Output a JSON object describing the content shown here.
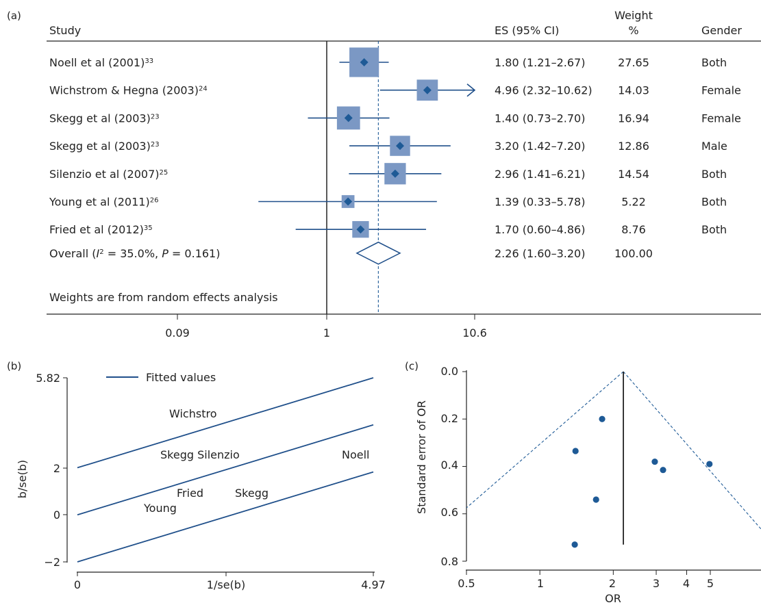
{
  "panel_a": {
    "label": "(a)",
    "headers": {
      "study": "Study",
      "es": "ES (95% CI)",
      "weight_line1": "Weight",
      "weight_line2": "%",
      "gender": "Gender"
    },
    "rows": [
      {
        "study": "Noell et al (2001)",
        "ref": "33",
        "es": "1.80 (1.21–2.67)",
        "weight": "27.65",
        "gender": "Both"
      },
      {
        "study": "Wichstrom & Hegna (2003)",
        "ref": "24",
        "es": "4.96 (2.32–10.62)",
        "weight": "14.03",
        "gender": "Female"
      },
      {
        "study": "Skegg et al (2003)",
        "ref": "23",
        "es": "1.40 (0.73–2.70)",
        "weight": "16.94",
        "gender": "Female"
      },
      {
        "study": "Skegg et al (2003)",
        "ref": "23",
        "es": "3.20 (1.42–7.20)",
        "weight": "12.86",
        "gender": "Male"
      },
      {
        "study": "Silenzio et al (2007)",
        "ref": "25",
        "es": "2.96 (1.41–6.21)",
        "weight": "14.54",
        "gender": "Both"
      },
      {
        "study": "Young et al (2011)",
        "ref": "26",
        "es": "1.39 (0.33–5.78)",
        "weight": "5.22",
        "gender": "Both"
      },
      {
        "study": "Fried et al (2012)",
        "ref": "35",
        "es": "1.70 (0.60–4.86)",
        "weight": "8.76",
        "gender": "Both"
      }
    ],
    "overall": {
      "prefix": "Overall (",
      "i2": "I",
      "i2_sup": "2",
      "stats": " = 35.0%, ",
      "p": "P",
      "p_val": " = 0.161)",
      "es": "2.26 (1.60–3.20)",
      "weight": "100.00"
    },
    "footnote": "Weights are from random effects analysis",
    "x_ticks": [
      "0.09",
      "1",
      "10.6"
    ]
  },
  "panel_b": {
    "label": "(b)",
    "legend": "Fitted values",
    "xlabel": "1/se(b)",
    "ylabel": "b/se(b)",
    "y_ticks": [
      "5.82",
      "2",
      "0",
      "−2"
    ],
    "x_ticks": [
      "0",
      "4.97"
    ],
    "point_labels": [
      "Wichstro",
      "Skegg Silenzio",
      "Noell",
      "Fried",
      "Skegg",
      "Young"
    ]
  },
  "panel_c": {
    "label": "(c)",
    "xlabel": "OR",
    "ylabel": "Standard error of OR",
    "y_ticks": [
      "0.0",
      "0.2",
      "0.4",
      "0.6",
      "0.8"
    ],
    "x_ticks": [
      "0.5",
      "1",
      "2",
      "3",
      "4",
      "5"
    ]
  },
  "colors": {
    "marker": "#1e5a96",
    "box": "#7b98c4",
    "line": "#1f4f8a",
    "axis": "#222222"
  },
  "chart_data": [
    {
      "type": "forest",
      "categories": [
        "Noell et al (2001)",
        "Wichstrom & Hegna (2003)",
        "Skegg et al (2003)",
        "Skegg et al (2003)",
        "Silenzio et al (2007)",
        "Young et al (2011)",
        "Fried et al (2012)"
      ],
      "values": [
        1.8,
        4.96,
        1.4,
        3.2,
        2.96,
        1.39,
        1.7
      ],
      "lower": [
        1.21,
        2.32,
        0.73,
        1.42,
        1.41,
        0.33,
        0.6
      ],
      "upper": [
        2.67,
        10.62,
        2.7,
        7.2,
        6.21,
        5.78,
        4.86
      ],
      "weights": [
        27.65,
        14.03,
        16.94,
        12.86,
        14.54,
        5.22,
        8.76
      ],
      "overall": {
        "value": 2.26,
        "lower": 1.6,
        "upper": 3.2
      },
      "xlim": [
        0.09,
        10.6
      ],
      "xscale": "log"
    },
    {
      "type": "scatter",
      "xlabel": "1/se(b)",
      "ylabel": "b/se(b)",
      "xlim": [
        0,
        4.97
      ],
      "ylim": [
        -2,
        5.82
      ],
      "fitted_lines": [
        {
          "x": [
            0,
            4.97
          ],
          "y": [
            2.0,
            5.82
          ]
        },
        {
          "x": [
            0,
            4.97
          ],
          "y": [
            0,
            3.82
          ]
        },
        {
          "x": [
            0,
            4.97
          ],
          "y": [
            -2.0,
            1.82
          ]
        }
      ],
      "legend": "top-left"
    },
    {
      "type": "scatter",
      "xlabel": "OR",
      "ylabel": "Standard error of OR",
      "xscale": "log",
      "xlim": [
        0.5,
        7.0
      ],
      "ylim": [
        0.8,
        0.0
      ],
      "x": [
        1.8,
        4.96,
        1.4,
        3.2,
        2.96,
        1.39,
        1.7
      ],
      "y": [
        0.2,
        0.39,
        0.335,
        0.415,
        0.38,
        0.73,
        0.54
      ],
      "pooled": 2.2,
      "funnel_apex": {
        "x": 2.2,
        "y": 0.0
      }
    }
  ]
}
